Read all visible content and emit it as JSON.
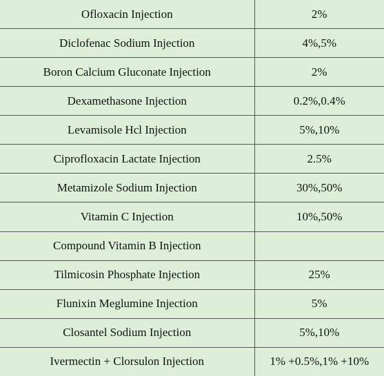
{
  "table": {
    "rows": [
      {
        "name": "Ofloxacin Injection",
        "concentration": "2%"
      },
      {
        "name": "Diclofenac Sodium Injection",
        "concentration": "4%,5%"
      },
      {
        "name": "Boron Calcium Gluconate Injection",
        "concentration": "2%"
      },
      {
        "name": "Dexamethasone Injection",
        "concentration": "0.2%,0.4%"
      },
      {
        "name": "Levamisole Hcl Injection",
        "concentration": "5%,10%"
      },
      {
        "name": "Ciprofloxacin Lactate Injection",
        "concentration": "2.5%"
      },
      {
        "name": "Metamizole Sodium Injection",
        "concentration": "30%,50%"
      },
      {
        "name": "Vitamin C Injection",
        "concentration": "10%,50%"
      },
      {
        "name": "Compound Vitamin B Injection",
        "concentration": ""
      },
      {
        "name": "Tilmicosin Phosphate Injection",
        "concentration": "25%"
      },
      {
        "name": "Flunixin Meglumine Injection",
        "concentration": "5%"
      },
      {
        "name": "Closantel Sodium Injection",
        "concentration": "5%,10%"
      },
      {
        "name": "Ivermectin + Clorsulon Injection",
        "concentration": "1% +0.5%,1% +10%"
      }
    ]
  },
  "colors": {
    "cell_background": "#ddefd9",
    "grid_line": "#555555",
    "text": "#111111"
  }
}
